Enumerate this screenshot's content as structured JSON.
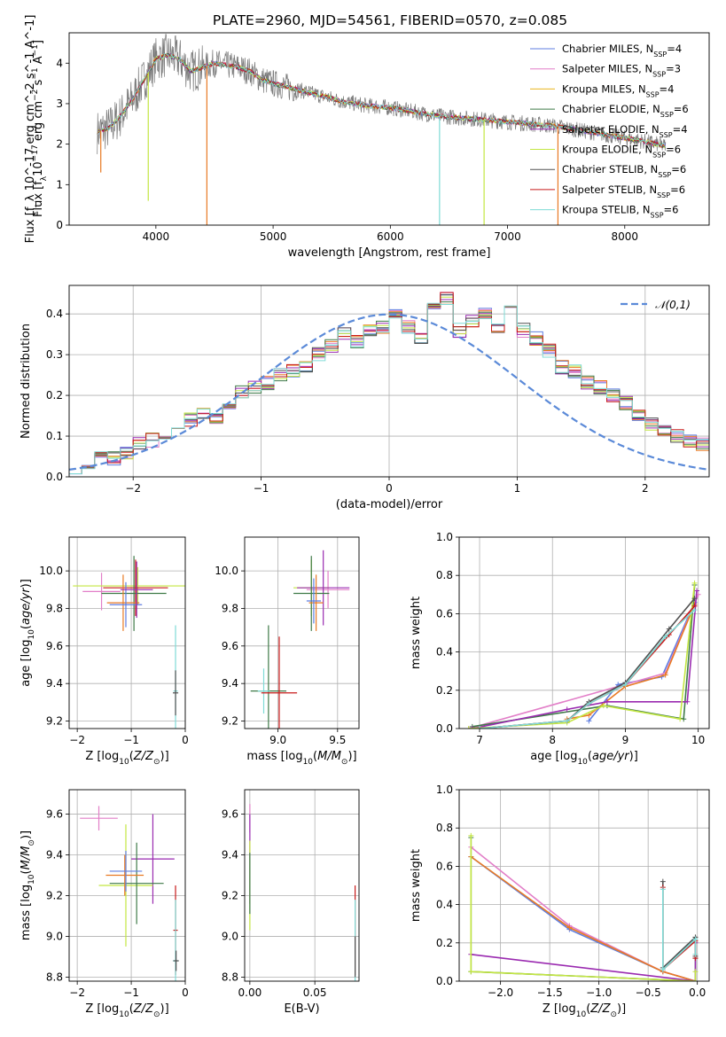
{
  "figure": {
    "title": "PLATE=2960, MJD=54561, FIBERID=0570, z=0.085"
  },
  "chart_data": [
    {
      "id": "spectrum",
      "type": "line",
      "title": "PLATE=2960, MJD=54561, FIBERID=0570, z=0.085",
      "xlabel": "wavelength [Angstrom, rest frame]",
      "ylabel": "Flux [f_λ 10^-17 erg cm^-2 s^-1 A^-1]",
      "xlim": [
        3260,
        8720
      ],
      "ylim": [
        0,
        4.75
      ],
      "xticks": [
        4000,
        5000,
        6000,
        7000,
        8000
      ],
      "yticks": [
        0,
        1,
        2,
        3,
        4
      ],
      "legend_position": "top-right",
      "data_continuum": {
        "x": [
          3500,
          3600,
          3700,
          3800,
          3900,
          4000,
          4100,
          4200,
          4300,
          4400,
          4500,
          4600,
          4700,
          4800,
          4900,
          5000,
          5200,
          5400,
          5600,
          5800,
          6000,
          6200,
          6400,
          6600,
          6800,
          7000,
          7200,
          7400,
          7600,
          7800,
          8000,
          8200,
          8350
        ],
        "y": [
          2.3,
          2.4,
          2.7,
          3.1,
          3.6,
          4.1,
          4.2,
          4.1,
          3.8,
          3.9,
          4.0,
          3.95,
          3.9,
          3.8,
          3.6,
          3.5,
          3.35,
          3.2,
          3.05,
          2.95,
          2.9,
          2.8,
          2.7,
          2.65,
          2.6,
          2.55,
          2.5,
          2.45,
          2.35,
          2.25,
          2.15,
          2.05,
          1.95
        ]
      },
      "series": [
        {
          "name": "Chabrier MILES",
          "nssp": "4",
          "color": "#5f7ee0"
        },
        {
          "name": "Salpeter MILES",
          "nssp": "3",
          "color": "#e27fc8"
        },
        {
          "name": "Kroupa MILES",
          "nssp": "4",
          "color": "#e8b41e"
        },
        {
          "name": "Chabrier ELODIE",
          "nssp": "6",
          "color": "#3f7a48"
        },
        {
          "name": "Salpeter ELODIE",
          "nssp": "4",
          "color": "#9a2ab0"
        },
        {
          "name": "Kroupa ELODIE",
          "nssp": "6",
          "color": "#c3e642"
        },
        {
          "name": "Chabrier STELIB",
          "nssp": "6",
          "color": "#505050"
        },
        {
          "name": "Salpeter STELIB",
          "nssp": "6",
          "color": "#c81a1a"
        },
        {
          "name": "Kroupa STELIB",
          "nssp": "6",
          "color": "#7fdbd6"
        }
      ],
      "model_dips": [
        {
          "x": 3530,
          "y": 1.3,
          "color": "#e87a24"
        },
        {
          "x": 3935,
          "y": 0.6,
          "color": "#c3e642"
        },
        {
          "x": 4435,
          "y": 0.0,
          "color": "#e87a24"
        },
        {
          "x": 6420,
          "y": 0.0,
          "color": "#7fdbd6"
        },
        {
          "x": 6800,
          "y": 0.0,
          "color": "#c3e642"
        },
        {
          "x": 7430,
          "y": 0.0,
          "color": "#e87a24"
        }
      ]
    },
    {
      "id": "residuals",
      "type": "bar",
      "xlabel": "(data-model)/error",
      "ylabel": "Normed distribution",
      "xlim": [
        -2.5,
        2.5
      ],
      "ylim": [
        0,
        0.47
      ],
      "xticks": [
        -2,
        -1,
        0,
        1,
        2
      ],
      "yticks": [
        0.0,
        0.1,
        0.2,
        0.3,
        0.4
      ],
      "legend": "𝒩(0,1)",
      "legend_position": "top-right",
      "grid": true,
      "histogram": {
        "bin_width": 0.1,
        "x_start": -2.5,
        "values": [
          0.025,
          0.03,
          0.055,
          0.045,
          0.06,
          0.085,
          0.09,
          0.1,
          0.12,
          0.14,
          0.155,
          0.14,
          0.18,
          0.21,
          0.22,
          0.23,
          0.25,
          0.26,
          0.27,
          0.3,
          0.32,
          0.35,
          0.33,
          0.36,
          0.37,
          0.4,
          0.37,
          0.34,
          0.41,
          0.44,
          0.36,
          0.38,
          0.4,
          0.37,
          0.43,
          0.36,
          0.34,
          0.31,
          0.27,
          0.26,
          0.23,
          0.22,
          0.2,
          0.18,
          0.15,
          0.13,
          0.11,
          0.1,
          0.085,
          0.08,
          0.07,
          0.06,
          0.055,
          0.05,
          0.045,
          0.04,
          0.035,
          0.03,
          0.025,
          0.02
        ]
      },
      "gaussian_curve": {
        "mean": 0,
        "sigma": 1
      }
    },
    {
      "id": "age-vs-Z",
      "type": "scatter",
      "xlabel": "Z [log10(Z/Z☉)]",
      "ylabel": "age [log10(age/yr)]",
      "xlim": [
        -2.15,
        0.0
      ],
      "ylim": [
        9.16,
        10.18
      ],
      "xticks": [
        -2,
        -1,
        0
      ],
      "yticks": [
        9.2,
        9.4,
        9.6,
        9.8,
        10.0
      ],
      "points": [
        {
          "x": -1.55,
          "xerr": 0.35,
          "y": 9.89,
          "yerr": 0.1,
          "color": "#e27fc8"
        },
        {
          "x": -0.88,
          "xerr": 1.2,
          "y": 9.92,
          "yerr": 0.1,
          "color": "#c3e642"
        },
        {
          "x": -0.92,
          "xerr": 0.6,
          "y": 9.91,
          "yerr": 0.15,
          "color": "#c81a1a"
        },
        {
          "x": -0.95,
          "xerr": 0.6,
          "y": 9.88,
          "yerr": 0.2,
          "color": "#3f7a48"
        },
        {
          "x": -1.15,
          "xerr": 0.3,
          "y": 9.83,
          "yerr": 0.15,
          "color": "#e87a24"
        },
        {
          "x": -1.1,
          "xerr": 0.3,
          "y": 9.82,
          "yerr": 0.12,
          "color": "#5f7ee0"
        },
        {
          "x": -0.9,
          "xerr": 0.3,
          "y": 9.9,
          "yerr": 0.15,
          "color": "#9a2ab0"
        },
        {
          "x": -0.18,
          "xerr": 0.04,
          "y": 9.36,
          "yerr": 0.35,
          "color": "#7fdbd6"
        },
        {
          "x": -0.18,
          "xerr": 0.05,
          "y": 9.35,
          "yerr": 0.12,
          "color": "#505050"
        }
      ]
    },
    {
      "id": "age-vs-mass",
      "type": "scatter",
      "xlabel": "mass [log10(M/M☉)]",
      "ylabel": "",
      "xlim": [
        8.72,
        9.68
      ],
      "ylim": [
        9.16,
        10.18
      ],
      "xticks": [
        9.0,
        9.5
      ],
      "yticks": [
        9.2,
        9.4,
        9.6,
        9.8,
        10.0
      ],
      "points": [
        {
          "x": 9.42,
          "xerr": 0.18,
          "y": 9.9,
          "yerr": 0.1,
          "color": "#e27fc8"
        },
        {
          "x": 9.28,
          "xerr": 0.15,
          "y": 9.91,
          "yerr": 0.15,
          "color": "#c3e642"
        },
        {
          "x": 9.38,
          "xerr": 0.22,
          "y": 9.91,
          "yerr": 0.2,
          "color": "#9a2ab0"
        },
        {
          "x": 9.28,
          "xerr": 0.15,
          "y": 9.88,
          "yerr": 0.2,
          "color": "#3f7a48"
        },
        {
          "x": 9.32,
          "xerr": 0.06,
          "y": 9.83,
          "yerr": 0.15,
          "color": "#e87a24"
        },
        {
          "x": 9.3,
          "xerr": 0.06,
          "y": 9.84,
          "yerr": 0.12,
          "color": "#5f7ee0"
        },
        {
          "x": 8.92,
          "xerr": 0.15,
          "y": 9.36,
          "yerr": 0.35,
          "color": "#3f7a48"
        },
        {
          "x": 8.88,
          "xerr": 0.05,
          "y": 9.36,
          "yerr": 0.12,
          "color": "#7fdbd6"
        },
        {
          "x": 9.01,
          "xerr": 0.15,
          "y": 9.35,
          "yerr": 0.3,
          "color": "#c81a1a"
        }
      ]
    },
    {
      "id": "weight-vs-age",
      "type": "line",
      "xlabel": "age [log10(age/yr)]",
      "ylabel": "mass weight",
      "xlim": [
        6.72,
        10.15
      ],
      "ylim": [
        0,
        1.0
      ],
      "xticks": [
        7,
        8,
        9,
        10
      ],
      "yticks": [
        0.0,
        0.2,
        0.4,
        0.6,
        0.8,
        1.0
      ],
      "series": [
        {
          "name": "Chabrier MILES",
          "color": "#5f7ee0",
          "x": [
            8.5,
            8.9,
            9.5,
            9.95
          ],
          "y": [
            0.04,
            0.23,
            0.27,
            0.66
          ]
        },
        {
          "name": "Salpeter MILES",
          "color": "#e27fc8",
          "x": [
            6.85,
            9.55,
            10.0
          ],
          "y": [
            0.0,
            0.29,
            0.7
          ]
        },
        {
          "name": "Kroupa MILES",
          "color": "#e87a24",
          "x": [
            8.2,
            8.5,
            9.0,
            9.55,
            9.95
          ],
          "y": [
            0.05,
            0.07,
            0.22,
            0.28,
            0.65
          ]
        },
        {
          "name": "Chabrier ELODIE",
          "color": "#3f7a48",
          "x": [
            6.9,
            8.75,
            9.8,
            9.95
          ],
          "y": [
            0.01,
            0.12,
            0.05,
            0.75
          ]
        },
        {
          "name": "Salpeter ELODIE",
          "color": "#9a2ab0",
          "x": [
            6.9,
            8.2,
            8.75,
            9.85,
            9.98
          ],
          "y": [
            0.0,
            0.1,
            0.14,
            0.14,
            0.72
          ]
        },
        {
          "name": "Kroupa ELODIE",
          "color": "#c3e642",
          "x": [
            6.85,
            8.2,
            8.7,
            9.75,
            9.95
          ],
          "y": [
            0.0,
            0.03,
            0.12,
            0.05,
            0.76
          ]
        },
        {
          "name": "Chabrier STELIB",
          "color": "#505050",
          "x": [
            7.0,
            8.2,
            8.5,
            9.0,
            9.6,
            9.95
          ],
          "y": [
            0.0,
            0.04,
            0.14,
            0.24,
            0.52,
            0.68
          ]
        },
        {
          "name": "Salpeter STELIB",
          "color": "#c81a1a",
          "x": [
            7.0,
            8.2,
            8.5,
            9.0,
            9.6,
            9.95
          ],
          "y": [
            0.0,
            0.04,
            0.13,
            0.23,
            0.49,
            0.64
          ]
        },
        {
          "name": "Kroupa STELIB",
          "color": "#7fdbd6",
          "x": [
            7.0,
            8.2,
            8.5,
            9.0,
            9.55,
            9.95
          ],
          "y": [
            0.0,
            0.04,
            0.13,
            0.23,
            0.48,
            0.62
          ]
        }
      ]
    },
    {
      "id": "mass-vs-Z",
      "type": "scatter",
      "xlabel": "Z [log10(Z/Z☉)]",
      "ylabel": "mass [log10(M/M☉)]",
      "xlim": [
        -2.15,
        0.0
      ],
      "ylim": [
        8.78,
        9.72
      ],
      "xticks": [
        -2,
        -1,
        0
      ],
      "yticks": [
        8.8,
        9.0,
        9.2,
        9.4,
        9.6
      ],
      "points": [
        {
          "x": -1.6,
          "xerr": 0.35,
          "y": 9.58,
          "yerr": 0.06,
          "color": "#e27fc8"
        },
        {
          "x": -0.6,
          "xerr": 0.4,
          "y": 9.38,
          "yerr": 0.22,
          "color": "#9a2ab0"
        },
        {
          "x": -1.1,
          "xerr": 0.5,
          "y": 9.25,
          "yerr": 0.3,
          "color": "#c3e642"
        },
        {
          "x": -0.9,
          "xerr": 0.5,
          "y": 9.26,
          "yerr": 0.2,
          "color": "#3f7a48"
        },
        {
          "x": -1.12,
          "xerr": 0.35,
          "y": 9.3,
          "yerr": 0.1,
          "color": "#e87a24"
        },
        {
          "x": -1.1,
          "xerr": 0.3,
          "y": 9.32,
          "yerr": 0.1,
          "color": "#5f7ee0"
        },
        {
          "x": -0.18,
          "xerr": 0.04,
          "y": 9.03,
          "yerr": 0.22,
          "color": "#c81a1a"
        },
        {
          "x": -0.18,
          "xerr": 0.05,
          "y": 8.88,
          "yerr": 0.3,
          "color": "#7fdbd6"
        },
        {
          "x": -0.17,
          "xerr": 0.05,
          "y": 8.88,
          "yerr": 0.05,
          "color": "#505050"
        }
      ]
    },
    {
      "id": "mass-vs-ebv",
      "type": "scatter",
      "xlabel": "E(B-V)",
      "ylabel": "",
      "xlim": [
        -0.004,
        0.084
      ],
      "ylim": [
        8.78,
        9.72
      ],
      "xticks": [
        0.0,
        0.05
      ],
      "yticks": [
        8.8,
        9.0,
        9.2,
        9.4,
        9.6
      ],
      "points": [
        {
          "x": 0.0,
          "y": 9.58,
          "yerr": 0.07,
          "color": "#e27fc8"
        },
        {
          "x": 0.0,
          "y": 9.38,
          "yerr": 0.22,
          "color": "#9a2ab0"
        },
        {
          "x": 0.0,
          "y": 9.25,
          "yerr": 0.22,
          "color": "#c3e642"
        },
        {
          "x": 0.0,
          "y": 9.26,
          "yerr": 0.15,
          "color": "#3f7a48"
        },
        {
          "x": 0.081,
          "y": 9.03,
          "yerr": 0.22,
          "color": "#c81a1a"
        },
        {
          "x": 0.081,
          "y": 8.88,
          "yerr": 0.3,
          "color": "#7fdbd6"
        },
        {
          "x": 0.081,
          "y": 8.9,
          "yerr": 0.1,
          "color": "#505050"
        }
      ]
    },
    {
      "id": "weight-vs-Z",
      "type": "line",
      "xlabel": "Z [log10(Z/Z☉)]",
      "ylabel": "mass weight",
      "xlim": [
        -2.42,
        0.12
      ],
      "ylim": [
        0,
        1.0
      ],
      "xticks": [
        -2.0,
        -1.5,
        -1.0,
        -0.5,
        0.0
      ],
      "yticks": [
        0.0,
        0.2,
        0.4,
        0.6,
        0.8,
        1.0
      ],
      "series": [
        {
          "name": "Chabrier MILES",
          "color": "#5f7ee0",
          "x": [
            -2.3,
            -1.3,
            -0.35,
            -0.02
          ],
          "y": [
            0.65,
            0.27,
            0.05,
            0.0
          ]
        },
        {
          "name": "Salpeter MILES",
          "color": "#e27fc8",
          "x": [
            -2.3,
            -1.3,
            -0.35,
            -0.02
          ],
          "y": [
            0.7,
            0.29,
            0.05,
            0.0
          ]
        },
        {
          "name": "Kroupa MILES",
          "color": "#e87a24",
          "x": [
            -2.3,
            -1.3,
            -0.35,
            -0.02
          ],
          "y": [
            0.65,
            0.28,
            0.05,
            0.0
          ]
        },
        {
          "name": "Chabrier ELODIE",
          "color": "#3f7a48",
          "x": [
            -2.3,
            -2.3,
            -0.02,
            -0.02
          ],
          "y": [
            0.75,
            0.05,
            0.0,
            0.12
          ]
        },
        {
          "name": "Salpeter ELODIE",
          "color": "#9a2ab0",
          "x": [
            -2.3,
            -0.02,
            -0.02
          ],
          "y": [
            0.14,
            0.0,
            0.2
          ]
        },
        {
          "name": "Kroupa ELODIE",
          "color": "#c3e642",
          "x": [
            -2.3,
            -2.3,
            -0.02,
            -0.02
          ],
          "y": [
            0.76,
            0.05,
            0.0,
            0.05
          ]
        },
        {
          "name": "Chabrier STELIB",
          "color": "#505050",
          "x": [
            -0.35,
            -0.35,
            -0.02,
            -0.02
          ],
          "y": [
            0.52,
            0.07,
            0.23,
            0.13
          ]
        },
        {
          "name": "Salpeter STELIB",
          "color": "#c81a1a",
          "x": [
            -0.35,
            -0.35,
            -0.02,
            -0.02
          ],
          "y": [
            0.49,
            0.06,
            0.21,
            0.12
          ]
        },
        {
          "name": "Kroupa STELIB",
          "color": "#7fdbd6",
          "x": [
            -0.35,
            -0.35,
            -0.02,
            -0.02
          ],
          "y": [
            0.48,
            0.06,
            0.22,
            0.14
          ]
        }
      ]
    }
  ]
}
